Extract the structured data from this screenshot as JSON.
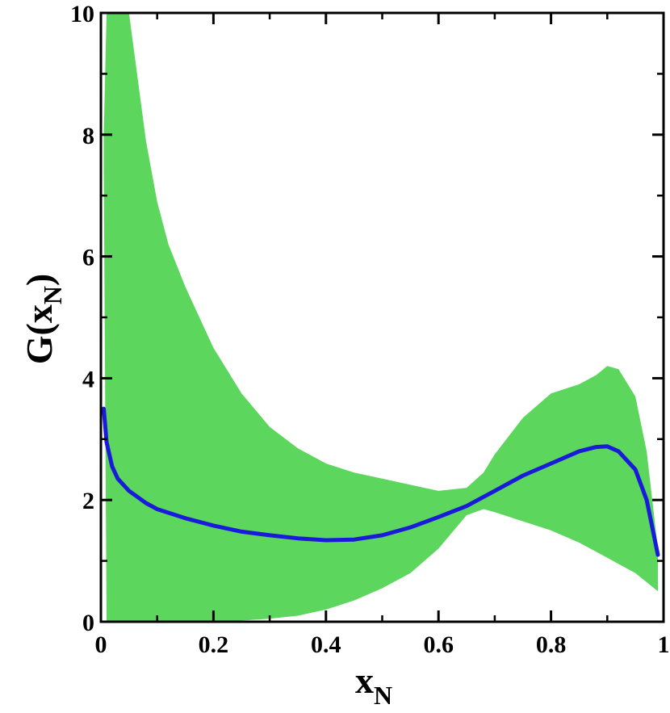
{
  "chart_data": {
    "type": "area",
    "title": "",
    "xlabel": {
      "main": "x",
      "sub": "N"
    },
    "ylabel": {
      "main": "G(x",
      "sub": "N",
      "close": ")"
    },
    "xlim": [
      0,
      1
    ],
    "ylim": [
      0,
      10
    ],
    "xticks": [
      0,
      0.2,
      0.4,
      0.6,
      0.8,
      1
    ],
    "xtick_labels": [
      "0",
      "0.2",
      "0.4",
      "0.6",
      "0.8",
      "1"
    ],
    "yticks": [
      0,
      2,
      4,
      6,
      8,
      10
    ],
    "ytick_labels": [
      "0",
      "2",
      "4",
      "6",
      "8",
      "10"
    ],
    "grid": false,
    "legend": "none",
    "colors": {
      "band": "#5cd65c",
      "line": "#1a1adb",
      "axes": "#000000"
    },
    "band": {
      "x": [
        0.005,
        0.01,
        0.02,
        0.03,
        0.04,
        0.05,
        0.06,
        0.08,
        0.1,
        0.12,
        0.15,
        0.2,
        0.25,
        0.3,
        0.35,
        0.4,
        0.45,
        0.5,
        0.55,
        0.6,
        0.65,
        0.68,
        0.7,
        0.75,
        0.8,
        0.85,
        0.88,
        0.9,
        0.92,
        0.95,
        0.97,
        0.99
      ],
      "lower": [
        7.5,
        0.0,
        0.0,
        0.0,
        0.0,
        0.0,
        0.0,
        0.0,
        0.0,
        0.0,
        0.0,
        0.0,
        0.02,
        0.05,
        0.1,
        0.2,
        0.35,
        0.55,
        0.8,
        1.2,
        1.75,
        1.85,
        1.8,
        1.65,
        1.5,
        1.3,
        1.15,
        1.05,
        0.95,
        0.8,
        0.65,
        0.5
      ],
      "upper": [
        8.0,
        10.0,
        10.0,
        10.0,
        10.0,
        10.0,
        9.3,
        7.9,
        6.9,
        6.2,
        5.5,
        4.5,
        3.75,
        3.2,
        2.85,
        2.6,
        2.45,
        2.35,
        2.25,
        2.15,
        2.2,
        2.45,
        2.75,
        3.35,
        3.75,
        3.9,
        4.05,
        4.2,
        4.15,
        3.7,
        2.8,
        1.2
      ]
    },
    "series": [
      {
        "x": [
          0.005,
          0.01,
          0.02,
          0.03,
          0.05,
          0.08,
          0.1,
          0.15,
          0.2,
          0.25,
          0.3,
          0.35,
          0.4,
          0.45,
          0.5,
          0.55,
          0.6,
          0.65,
          0.7,
          0.75,
          0.8,
          0.85,
          0.88,
          0.9,
          0.92,
          0.95,
          0.97,
          0.99
        ],
        "values": [
          3.5,
          2.95,
          2.55,
          2.35,
          2.15,
          1.95,
          1.85,
          1.7,
          1.58,
          1.48,
          1.42,
          1.37,
          1.34,
          1.35,
          1.42,
          1.55,
          1.72,
          1.9,
          2.15,
          2.4,
          2.6,
          2.8,
          2.87,
          2.88,
          2.8,
          2.5,
          2.0,
          1.1
        ]
      }
    ]
  }
}
